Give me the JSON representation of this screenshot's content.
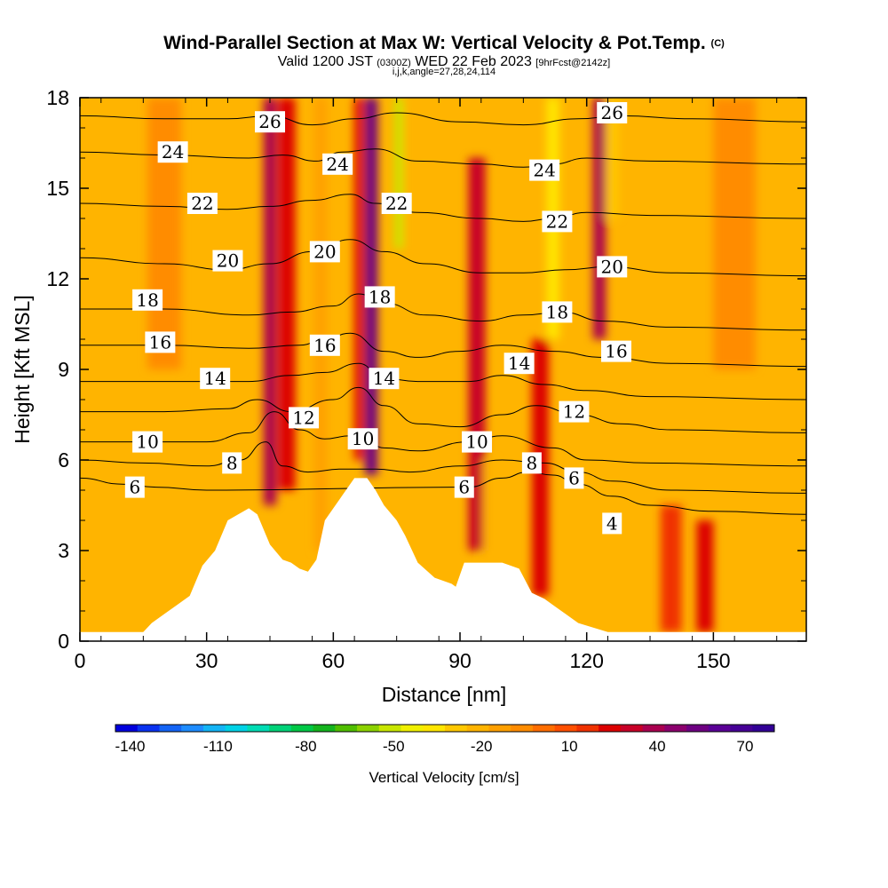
{
  "chart_data": {
    "type": "heatmap",
    "title": "Wind-Parallel Section at Max W: Vertical Velocity & Pot.Temp.",
    "title_suffix": "(C)",
    "subtitle_parts": [
      "Valid 1200 JST",
      "(0300Z)",
      "WED 22 Feb 2023",
      "[9hrFcst@2142z]"
    ],
    "params": "i,j,k,angle=27,28,24,114",
    "xlabel": "Distance [nm]",
    "ylabel": "Height [Kft MSL]",
    "xlim": [
      0,
      172
    ],
    "ylim": [
      0,
      18
    ],
    "x_ticks": [
      "0",
      "30",
      "60",
      "90",
      "120",
      "150"
    ],
    "y_ticks": [
      "0",
      "3",
      "6",
      "9",
      "12",
      "15",
      "18"
    ],
    "colorbar": {
      "label": "Vertical Velocity [cm/s]",
      "range": [
        -145,
        80
      ],
      "step": 7.5,
      "tick_labels": [
        "-140",
        "-110",
        "-80",
        "-50",
        "-20",
        "10",
        "40",
        "70"
      ],
      "colors": [
        "#0000dd",
        "#0a32f0",
        "#1464f5",
        "#1e8cff",
        "#14b4f5",
        "#00d2e6",
        "#00dcb4",
        "#00d278",
        "#00c846",
        "#14b41e",
        "#50be00",
        "#8cd200",
        "#c8e600",
        "#f0f000",
        "#ffe600",
        "#ffc800",
        "#ffb400",
        "#ffa000",
        "#ff8c00",
        "#ff6e00",
        "#ff5000",
        "#f03200",
        "#dc0000",
        "#c80028",
        "#aa0050",
        "#8c006e",
        "#6e0082",
        "#5a0096",
        "#460096",
        "#320096"
      ]
    },
    "terrain_kft": [
      [
        0,
        0.3
      ],
      [
        15,
        0.3
      ],
      [
        17,
        0.6
      ],
      [
        20,
        0.9
      ],
      [
        23,
        1.2
      ],
      [
        26,
        1.5
      ],
      [
        29,
        2.5
      ],
      [
        32,
        3.0
      ],
      [
        35,
        4.0
      ],
      [
        40,
        4.4
      ],
      [
        42,
        4.2
      ],
      [
        45,
        3.2
      ],
      [
        48,
        2.7
      ],
      [
        50,
        2.6
      ],
      [
        52,
        2.4
      ],
      [
        54,
        2.3
      ],
      [
        56,
        2.7
      ],
      [
        58,
        4.0
      ],
      [
        62,
        4.8
      ],
      [
        65,
        5.4
      ],
      [
        68,
        5.4
      ],
      [
        70,
        5.0
      ],
      [
        72,
        4.5
      ],
      [
        75,
        4.0
      ],
      [
        77,
        3.5
      ],
      [
        80,
        2.6
      ],
      [
        84,
        2.1
      ],
      [
        88,
        1.9
      ],
      [
        89,
        1.8
      ],
      [
        91,
        2.6
      ],
      [
        100,
        2.6
      ],
      [
        104,
        2.4
      ],
      [
        107,
        1.6
      ],
      [
        110,
        1.4
      ],
      [
        112,
        1.2
      ],
      [
        115,
        0.9
      ],
      [
        118,
        0.6
      ],
      [
        125,
        0.3
      ],
      [
        172,
        0.3
      ]
    ],
    "theta_contours_C": [
      {
        "label": "4",
        "points": [
          [
            125,
            3.6
          ],
          [
            128,
            4.0
          ]
        ]
      },
      {
        "label": "6",
        "points": [
          [
            0,
            5.4
          ],
          [
            10,
            5.2
          ],
          [
            18,
            5.1
          ],
          [
            30,
            5.0
          ],
          [
            92,
            5.1
          ],
          [
            100,
            5.4
          ],
          [
            106,
            5.6
          ],
          [
            112,
            5.5
          ],
          [
            118,
            5.2
          ],
          [
            126,
            4.8
          ],
          [
            135,
            4.5
          ],
          [
            150,
            4.3
          ],
          [
            172,
            4.2
          ]
        ]
      },
      {
        "label": "8",
        "points": [
          [
            0,
            6.0
          ],
          [
            15,
            5.9
          ],
          [
            30,
            5.8
          ],
          [
            38,
            6.0
          ],
          [
            44,
            6.6
          ],
          [
            48,
            5.8
          ],
          [
            54,
            5.6
          ],
          [
            62,
            5.7
          ],
          [
            70,
            5.7
          ],
          [
            78,
            5.6
          ],
          [
            90,
            5.8
          ],
          [
            100,
            6.0
          ],
          [
            110,
            5.9
          ],
          [
            118,
            5.6
          ],
          [
            126,
            5.3
          ],
          [
            140,
            5.0
          ],
          [
            172,
            4.9
          ]
        ]
      },
      {
        "label": "10",
        "points": [
          [
            0,
            6.6
          ],
          [
            15,
            6.6
          ],
          [
            30,
            6.6
          ],
          [
            40,
            6.9
          ],
          [
            46,
            7.6
          ],
          [
            52,
            7.0
          ],
          [
            58,
            6.7
          ],
          [
            64,
            6.8
          ],
          [
            68,
            6.6
          ],
          [
            72,
            6.4
          ],
          [
            80,
            6.3
          ],
          [
            92,
            6.6
          ],
          [
            100,
            6.8
          ],
          [
            112,
            6.4
          ],
          [
            120,
            6.0
          ],
          [
            135,
            5.9
          ],
          [
            172,
            5.8
          ]
        ]
      },
      {
        "label": "12",
        "points": [
          [
            0,
            7.6
          ],
          [
            20,
            7.6
          ],
          [
            35,
            7.7
          ],
          [
            42,
            8.0
          ],
          [
            50,
            7.6
          ],
          [
            60,
            8.0
          ],
          [
            66,
            8.4
          ],
          [
            72,
            7.8
          ],
          [
            80,
            7.2
          ],
          [
            90,
            7.1
          ],
          [
            100,
            7.5
          ],
          [
            108,
            7.8
          ],
          [
            118,
            7.5
          ],
          [
            128,
            7.2
          ],
          [
            140,
            7.0
          ],
          [
            172,
            6.9
          ]
        ]
      },
      {
        "label": "14",
        "points": [
          [
            0,
            8.6
          ],
          [
            25,
            8.6
          ],
          [
            40,
            8.6
          ],
          [
            50,
            8.8
          ],
          [
            58,
            8.9
          ],
          [
            66,
            9.2
          ],
          [
            72,
            8.7
          ],
          [
            80,
            8.6
          ],
          [
            92,
            8.6
          ],
          [
            100,
            8.8
          ],
          [
            110,
            8.5
          ],
          [
            120,
            8.3
          ],
          [
            135,
            8.1
          ],
          [
            172,
            8.0
          ]
        ]
      },
      {
        "label": "16",
        "points": [
          [
            0,
            9.8
          ],
          [
            20,
            9.8
          ],
          [
            40,
            9.7
          ],
          [
            52,
            9.8
          ],
          [
            58,
            10.0
          ],
          [
            64,
            10.2
          ],
          [
            72,
            9.6
          ],
          [
            80,
            9.4
          ],
          [
            90,
            9.6
          ],
          [
            100,
            9.8
          ],
          [
            112,
            9.6
          ],
          [
            124,
            9.4
          ],
          [
            140,
            9.2
          ],
          [
            172,
            9.1
          ]
        ]
      },
      {
        "label": "18",
        "points": [
          [
            0,
            11.0
          ],
          [
            20,
            11.0
          ],
          [
            40,
            10.8
          ],
          [
            50,
            10.9
          ],
          [
            60,
            11.1
          ],
          [
            66,
            11.5
          ],
          [
            72,
            11.2
          ],
          [
            82,
            10.8
          ],
          [
            95,
            10.6
          ],
          [
            105,
            10.8
          ],
          [
            114,
            10.9
          ],
          [
            124,
            10.6
          ],
          [
            140,
            10.4
          ],
          [
            172,
            10.3
          ]
        ]
      },
      {
        "label": "20",
        "points": [
          [
            0,
            12.7
          ],
          [
            20,
            12.5
          ],
          [
            35,
            12.3
          ],
          [
            45,
            12.5
          ],
          [
            55,
            12.9
          ],
          [
            64,
            13.3
          ],
          [
            72,
            12.9
          ],
          [
            82,
            12.5
          ],
          [
            95,
            12.2
          ],
          [
            105,
            12.2
          ],
          [
            115,
            12.3
          ],
          [
            125,
            12.4
          ],
          [
            140,
            12.2
          ],
          [
            172,
            12.1
          ]
        ]
      },
      {
        "label": "22",
        "points": [
          [
            0,
            14.5
          ],
          [
            20,
            14.4
          ],
          [
            35,
            14.3
          ],
          [
            45,
            14.4
          ],
          [
            55,
            14.6
          ],
          [
            64,
            14.8
          ],
          [
            70,
            14.5
          ],
          [
            80,
            14.2
          ],
          [
            95,
            14.0
          ],
          [
            105,
            13.9
          ],
          [
            112,
            14.0
          ],
          [
            120,
            14.2
          ],
          [
            135,
            14.1
          ],
          [
            172,
            14.0
          ]
        ]
      },
      {
        "label": "24",
        "points": [
          [
            0,
            16.2
          ],
          [
            20,
            16.1
          ],
          [
            40,
            16.0
          ],
          [
            48,
            16.1
          ],
          [
            56,
            15.9
          ],
          [
            62,
            16.2
          ],
          [
            70,
            16.3
          ],
          [
            80,
            15.9
          ],
          [
            95,
            15.8
          ],
          [
            105,
            15.7
          ],
          [
            112,
            15.8
          ],
          [
            120,
            16.0
          ],
          [
            135,
            15.9
          ],
          [
            172,
            15.8
          ]
        ]
      },
      {
        "label": "26",
        "points": [
          [
            0,
            17.4
          ],
          [
            20,
            17.3
          ],
          [
            35,
            17.3
          ],
          [
            45,
            17.4
          ],
          [
            55,
            17.1
          ],
          [
            65,
            17.3
          ],
          [
            75,
            17.5
          ],
          [
            90,
            17.2
          ],
          [
            105,
            17.1
          ],
          [
            118,
            17.3
          ],
          [
            128,
            17.4
          ],
          [
            145,
            17.3
          ],
          [
            172,
            17.2
          ]
        ]
      }
    ],
    "contour_labels": [
      {
        "text": "4",
        "x": 126,
        "y": 3.9
      },
      {
        "text": "6",
        "x": 13,
        "y": 5.1
      },
      {
        "text": "6",
        "x": 91,
        "y": 5.1
      },
      {
        "text": "6",
        "x": 117,
        "y": 5.4
      },
      {
        "text": "8",
        "x": 36,
        "y": 5.9
      },
      {
        "text": "8",
        "x": 107,
        "y": 5.9
      },
      {
        "text": "10",
        "x": 16,
        "y": 6.6
      },
      {
        "text": "10",
        "x": 67,
        "y": 6.7
      },
      {
        "text": "10",
        "x": 94,
        "y": 6.6
      },
      {
        "text": "12",
        "x": 53,
        "y": 7.4
      },
      {
        "text": "12",
        "x": 117,
        "y": 7.6
      },
      {
        "text": "14",
        "x": 32,
        "y": 8.7
      },
      {
        "text": "14",
        "x": 72,
        "y": 8.7
      },
      {
        "text": "14",
        "x": 104,
        "y": 9.2
      },
      {
        "text": "16",
        "x": 19,
        "y": 9.9
      },
      {
        "text": "16",
        "x": 58,
        "y": 9.8
      },
      {
        "text": "16",
        "x": 127,
        "y": 9.6
      },
      {
        "text": "18",
        "x": 16,
        "y": 11.3
      },
      {
        "text": "18",
        "x": 71,
        "y": 11.4
      },
      {
        "text": "18",
        "x": 113,
        "y": 10.9
      },
      {
        "text": "20",
        "x": 35,
        "y": 12.6
      },
      {
        "text": "20",
        "x": 58,
        "y": 12.9
      },
      {
        "text": "20",
        "x": 126,
        "y": 12.4
      },
      {
        "text": "22",
        "x": 29,
        "y": 14.5
      },
      {
        "text": "22",
        "x": 75,
        "y": 14.5
      },
      {
        "text": "22",
        "x": 113,
        "y": 13.9
      },
      {
        "text": "24",
        "x": 22,
        "y": 16.2
      },
      {
        "text": "24",
        "x": 61,
        "y": 15.8
      },
      {
        "text": "24",
        "x": 110,
        "y": 15.6
      },
      {
        "text": "26",
        "x": 45,
        "y": 17.2
      },
      {
        "text": "26",
        "x": 126,
        "y": 17.5
      }
    ],
    "velocity_bands_cms": [
      {
        "x": 45,
        "width": 3,
        "value": 40,
        "from": 4.5,
        "to": 18
      },
      {
        "x": 49,
        "width": 4,
        "value": 25,
        "from": 5,
        "to": 18
      },
      {
        "x": 57,
        "width": 3,
        "value": -15,
        "from": 3,
        "to": 18
      },
      {
        "x": 69,
        "width": 3,
        "value": 55,
        "from": 5.5,
        "to": 18
      },
      {
        "x": 66,
        "width": 2,
        "value": 25,
        "from": 6,
        "to": 18
      },
      {
        "x": 76,
        "width": 3,
        "value": -50,
        "from": 13,
        "to": 18
      },
      {
        "x": 78,
        "width": 3,
        "value": -25,
        "from": 6,
        "to": 18
      },
      {
        "x": 94,
        "width": 4,
        "value": 30,
        "from": 3,
        "to": 16
      },
      {
        "x": 97,
        "width": 3,
        "value": -25,
        "from": 2.5,
        "to": 6
      },
      {
        "x": 109,
        "width": 4,
        "value": 20,
        "from": 1.5,
        "to": 10
      },
      {
        "x": 112,
        "width": 3,
        "value": -35,
        "from": 10,
        "to": 18
      },
      {
        "x": 123,
        "width": 3,
        "value": 35,
        "from": 10,
        "to": 18
      },
      {
        "x": 126,
        "width": 3,
        "value": -30,
        "from": 14,
        "to": 18
      },
      {
        "x": 140,
        "width": 5,
        "value": 18,
        "from": 0.3,
        "to": 4.5
      },
      {
        "x": 148,
        "width": 4,
        "value": 25,
        "from": 0.3,
        "to": 4
      },
      {
        "x": 20,
        "width": 8,
        "value": -5,
        "from": 9,
        "to": 18
      },
      {
        "x": 155,
        "width": 10,
        "value": -5,
        "from": 9,
        "to": 18
      }
    ]
  }
}
